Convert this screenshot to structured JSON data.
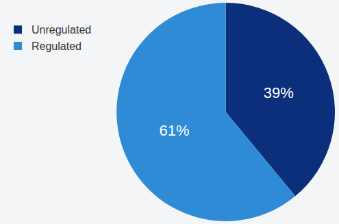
{
  "chart_data": {
    "type": "pie",
    "categories": [
      "Unregulated",
      "Regulated"
    ],
    "values": [
      39,
      61
    ],
    "value_labels": [
      "39%",
      "61%"
    ],
    "colors": [
      "#0b2f7a",
      "#2f8bd6"
    ],
    "data_labels": true,
    "legend": "top-left"
  }
}
